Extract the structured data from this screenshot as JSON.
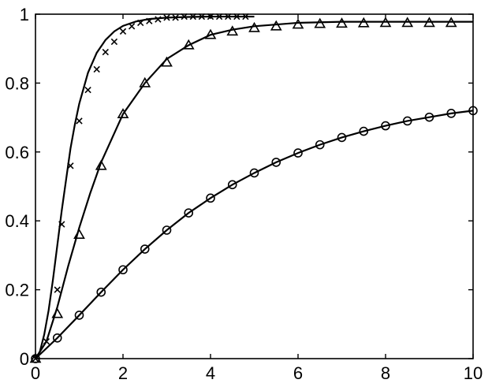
{
  "chart_data": {
    "type": "line",
    "title": "",
    "xlabel": "",
    "ylabel": "",
    "xlim": [
      0,
      10
    ],
    "ylim": [
      0,
      1
    ],
    "xticks": [
      0,
      2,
      4,
      6,
      8,
      10
    ],
    "yticks": [
      0,
      0.2,
      0.4,
      0.6,
      0.8,
      1
    ],
    "xtick_labels": [
      "0",
      "2",
      "4",
      "6",
      "8",
      "10"
    ],
    "ytick_labels": [
      "0",
      "0.2",
      "0.4",
      "0.6",
      "0.8",
      "1"
    ],
    "grid": false,
    "legend": false,
    "series": [
      {
        "marker": "x",
        "curve": {
          "x": [
            0,
            0.1,
            0.2,
            0.3,
            0.4,
            0.5,
            0.6,
            0.7,
            0.8,
            0.9,
            1.0,
            1.2,
            1.4,
            1.6,
            1.8,
            2.0,
            2.3,
            2.6,
            3.0,
            3.5,
            4.0,
            4.5,
            5.0
          ],
          "y": [
            0,
            0.02,
            0.07,
            0.14,
            0.23,
            0.33,
            0.43,
            0.52,
            0.61,
            0.68,
            0.74,
            0.83,
            0.888,
            0.925,
            0.95,
            0.966,
            0.979,
            0.986,
            0.99,
            0.992,
            0.993,
            0.993,
            0.993
          ]
        },
        "points": {
          "x": [
            0,
            0.25,
            0.5,
            0.6,
            0.8,
            1.0,
            1.2,
            1.4,
            1.6,
            1.8,
            2.0,
            2.2,
            2.4,
            2.6,
            2.8,
            3.0,
            3.2,
            3.4,
            3.6,
            3.8,
            4.0,
            4.2,
            4.4,
            4.6,
            4.8
          ],
          "y": [
            0,
            0.05,
            0.2,
            0.39,
            0.56,
            0.69,
            0.78,
            0.84,
            0.89,
            0.92,
            0.95,
            0.965,
            0.975,
            0.98,
            0.985,
            0.99,
            0.99,
            0.993,
            0.993,
            0.993,
            0.993,
            0.993,
            0.993,
            0.993,
            0.993
          ]
        }
      },
      {
        "marker": "triangle",
        "curve": {
          "x": [
            0,
            0.25,
            0.5,
            0.75,
            1.0,
            1.25,
            1.5,
            1.75,
            2.0,
            2.5,
            3.0,
            3.5,
            4.0,
            4.5,
            5.0,
            6.0,
            7.0,
            8.0,
            9.0,
            10.0
          ],
          "y": [
            0,
            0.05,
            0.15,
            0.27,
            0.38,
            0.48,
            0.57,
            0.64,
            0.71,
            0.8,
            0.87,
            0.91,
            0.94,
            0.955,
            0.965,
            0.975,
            0.978,
            0.978,
            0.978,
            0.978
          ]
        },
        "points": {
          "x": [
            0,
            0.5,
            1.0,
            1.5,
            2.0,
            2.5,
            3.0,
            3.5,
            4.0,
            4.5,
            5.0,
            5.5,
            6.0,
            6.5,
            7.0,
            7.5,
            8.0,
            8.5,
            9.0,
            9.5
          ],
          "y": [
            0,
            0.13,
            0.36,
            0.56,
            0.71,
            0.8,
            0.86,
            0.91,
            0.94,
            0.95,
            0.96,
            0.965,
            0.97,
            0.972,
            0.973,
            0.974,
            0.975,
            0.975,
            0.975,
            0.975
          ]
        }
      },
      {
        "marker": "circle",
        "curve": {
          "x": [
            0,
            0.5,
            1,
            1.5,
            2,
            2.5,
            3,
            3.5,
            4,
            4.5,
            5,
            5.5,
            6,
            6.5,
            7,
            7.5,
            8,
            8.5,
            9,
            9.5,
            10
          ],
          "y": [
            0,
            0.06,
            0.126,
            0.193,
            0.258,
            0.318,
            0.373,
            0.423,
            0.466,
            0.505,
            0.539,
            0.57,
            0.597,
            0.621,
            0.642,
            0.66,
            0.676,
            0.69,
            0.701,
            0.712,
            0.72
          ]
        },
        "points": {
          "x": [
            0,
            0.5,
            1,
            1.5,
            2,
            2.5,
            3,
            3.5,
            4,
            4.5,
            5,
            5.5,
            6,
            6.5,
            7,
            7.5,
            8,
            8.5,
            9,
            9.5,
            10
          ],
          "y": [
            0,
            0.06,
            0.126,
            0.193,
            0.258,
            0.318,
            0.373,
            0.423,
            0.466,
            0.505,
            0.539,
            0.57,
            0.597,
            0.621,
            0.642,
            0.66,
            0.676,
            0.69,
            0.701,
            0.712,
            0.72
          ]
        }
      }
    ]
  }
}
